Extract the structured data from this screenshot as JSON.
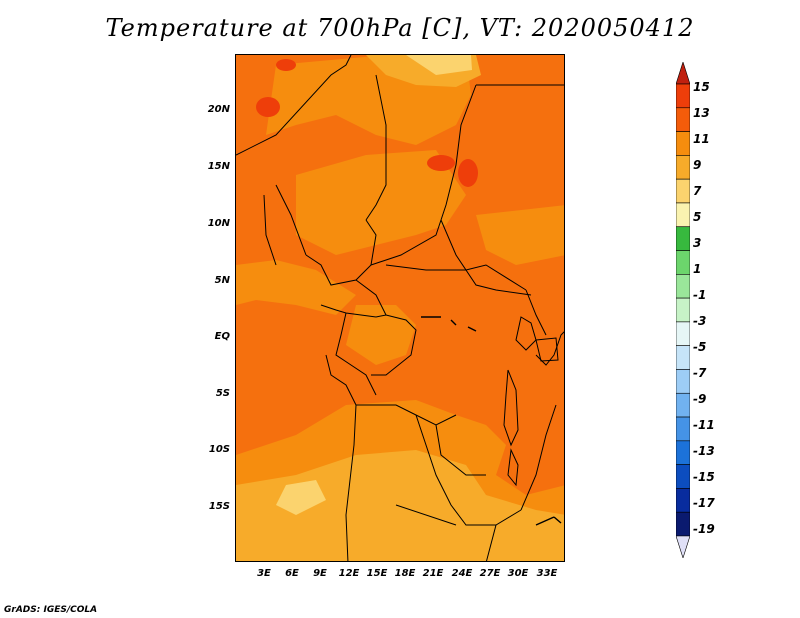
{
  "title": "Temperature at 700hPa [C], VT: 2020050412",
  "credit": "GrADS: IGES/COLA",
  "lat_ticks": [
    "20N",
    "15N",
    "10N",
    "5N",
    "EQ",
    "5S",
    "10S",
    "15S"
  ],
  "lon_ticks": [
    "3E",
    "6E",
    "9E",
    "12E",
    "15E",
    "18E",
    "21E",
    "24E",
    "27E",
    "30E",
    "33E"
  ],
  "colorbar": {
    "labels": [
      "15",
      "13",
      "11",
      "9",
      "7",
      "5",
      "3",
      "1",
      "-1",
      "-3",
      "-5",
      "-7",
      "-9",
      "-11",
      "-13",
      "-15",
      "-17",
      "-19"
    ],
    "colors": [
      "#c0200f",
      "#ee3e0a",
      "#f45c0a",
      "#f68d0e",
      "#f7ab2a",
      "#fbd36e",
      "#faf3b0",
      "#37b93e",
      "#6cd56c",
      "#9ae69a",
      "#c7f3c7",
      "#e6f6f6",
      "#c6e4f8",
      "#9dcdf6",
      "#71b2f0",
      "#4593e6",
      "#1c72d9",
      "#0c4dbf",
      "#082c9e",
      "#0a1a6f",
      "#e0e0f7"
    ]
  }
}
